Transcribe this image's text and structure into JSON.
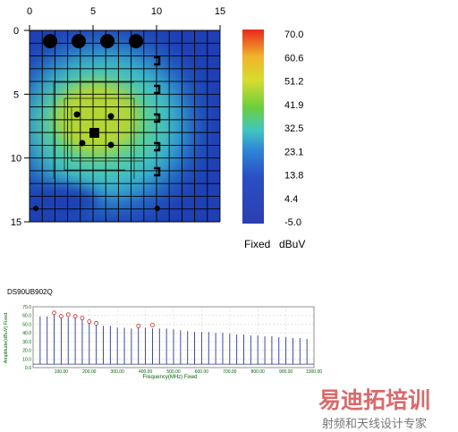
{
  "chart_data": [
    {
      "type": "heatmap",
      "xlim": [
        0,
        15
      ],
      "ylim": [
        0,
        15
      ],
      "x_ticks": [
        "0",
        "5",
        "10",
        "15"
      ],
      "y_ticks": [
        "0",
        "5",
        "10",
        "15"
      ],
      "colorbar": {
        "ticks": [
          "70.0",
          "60.6",
          "51.2",
          "41.9",
          "32.5",
          "23.1",
          "13.8",
          "4.4",
          "-5.0"
        ],
        "range": [
          -5.0,
          70.0
        ],
        "label_left": "Fixed",
        "label_right": "dBuV"
      },
      "hotspot": {
        "x": 6.0,
        "y": 7.5,
        "peak": 51.0,
        "background": 25.0
      }
    },
    {
      "type": "bar",
      "title": "DS90UB902Q",
      "xlabel": "Frequency(MHz) Fixed",
      "ylabel": "Amplitude(dBuV) Fixed",
      "xlim": [
        0,
        1000
      ],
      "ylim": [
        0,
        70
      ],
      "y_ticks": [
        "70.0",
        "60.0",
        "50.0",
        "40.0",
        "30.0",
        "20.0",
        "10.0",
        "0.0"
      ],
      "x_ticks": [
        "100.00",
        "200.00",
        "300.00",
        "400.00",
        "500.00",
        "600.00",
        "700.00",
        "800.00",
        "900.00",
        "1000.00"
      ],
      "series": [
        {
          "freqs": [
            25,
            50,
            75,
            100,
            125,
            150,
            175,
            200,
            225,
            250,
            275,
            300,
            325,
            350,
            375,
            400,
            425,
            450,
            475,
            500,
            525,
            550,
            575,
            600,
            625,
            650,
            675,
            700,
            725,
            750,
            775,
            800,
            825,
            850,
            875,
            900,
            925,
            950,
            975
          ],
          "values": [
            59,
            59,
            61,
            59,
            58,
            57,
            55,
            52,
            51,
            48,
            48,
            46,
            46,
            45,
            48,
            46,
            45,
            45,
            45,
            44,
            43,
            42,
            41,
            41,
            41,
            40,
            40,
            39,
            38,
            38,
            37,
            37,
            36,
            36,
            35,
            35,
            34,
            34,
            33
          ]
        }
      ],
      "markers": {
        "freqs": [
          75,
          100,
          125,
          150,
          175,
          200,
          225,
          375,
          425
        ],
        "values": [
          63,
          59,
          61,
          59,
          57,
          53,
          51,
          48,
          49
        ]
      }
    }
  ],
  "colors": {
    "axis_tick_text": "#006400",
    "spectrum_line": "#2a3a8c",
    "marker": "#cc2222",
    "grid": "#000000"
  },
  "watermark": {
    "main": "易迪拓培训",
    "sub": "射频和天线设计专家"
  }
}
